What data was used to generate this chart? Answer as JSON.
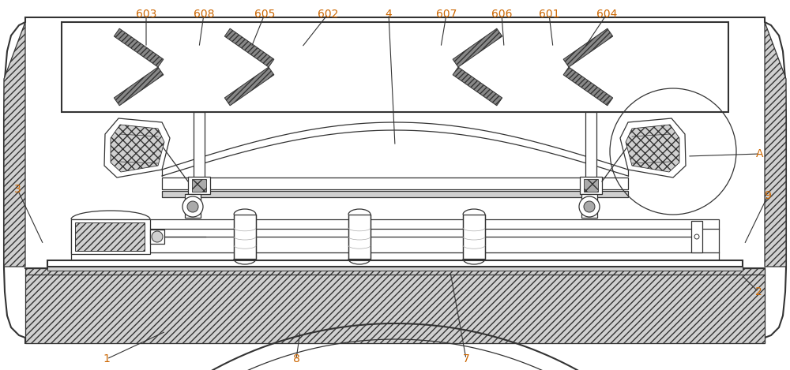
{
  "fig_w": 10.0,
  "fig_h": 4.69,
  "lc": "#333333",
  "lc2": "#555555",
  "label_c": "#cc6600",
  "gray_light": "#d0d0d0",
  "gray_med": "#aaaaaa",
  "gray_dark": "#888888",
  "labels": [
    "603",
    "608",
    "605",
    "602",
    "4",
    "607",
    "606",
    "601",
    "604",
    "A",
    "3",
    "9",
    "2",
    "1",
    "8",
    "7"
  ],
  "lbl_x": [
    185,
    258,
    335,
    415,
    492,
    565,
    635,
    695,
    768,
    962,
    22,
    972,
    960,
    135,
    375,
    590
  ],
  "lbl_y": [
    18,
    18,
    18,
    18,
    18,
    18,
    18,
    18,
    18,
    195,
    240,
    248,
    370,
    455,
    455,
    455
  ],
  "tgt_x": [
    185,
    252,
    318,
    382,
    500,
    558,
    638,
    700,
    740,
    870,
    55,
    942,
    938,
    210,
    380,
    570
  ],
  "tgt_y": [
    60,
    60,
    60,
    60,
    185,
    60,
    60,
    60,
    60,
    198,
    310,
    310,
    348,
    420,
    420,
    345
  ]
}
